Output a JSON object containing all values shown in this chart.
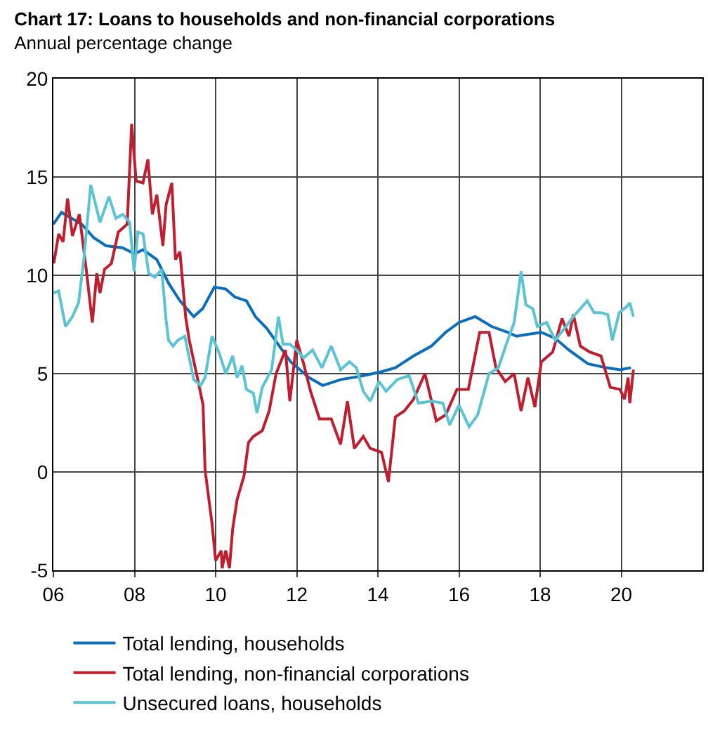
{
  "chart_data": {
    "type": "line",
    "title": "Chart 17: Loans to households and non-financial corporations",
    "subtitle": "Annual percentage change",
    "xlim": [
      2006,
      2022
    ],
    "xticks": [
      {
        "value": 2006,
        "label": "06"
      },
      {
        "value": 2008,
        "label": "08"
      },
      {
        "value": 2010,
        "label": "10"
      },
      {
        "value": 2012,
        "label": "12"
      },
      {
        "value": 2014,
        "label": "14"
      },
      {
        "value": 2016,
        "label": "16"
      },
      {
        "value": 2018,
        "label": "18"
      },
      {
        "value": 2020,
        "label": "20"
      }
    ],
    "ylim": [
      -5,
      20
    ],
    "yticks": [
      -5,
      0,
      5,
      10,
      15,
      20
    ],
    "grid": true,
    "legend": "bottom",
    "line_style": "solid",
    "marker": "none",
    "series": [
      {
        "name": "Total lending, households",
        "color": "#0a6ebd",
        "x": [
          2006.0,
          2006.2,
          2006.7,
          2007.0,
          2007.3,
          2007.7,
          2008.0,
          2008.21,
          2008.55,
          2008.84,
          2009.12,
          2009.46,
          2009.68,
          2009.97,
          2010.25,
          2010.47,
          2010.76,
          2010.98,
          2011.26,
          2011.4,
          2011.85,
          2012.3,
          2012.64,
          2013.09,
          2013.66,
          2014.09,
          2014.43,
          2014.88,
          2015.32,
          2015.67,
          2016.0,
          2016.4,
          2016.8,
          2017.2,
          2017.42,
          2017.7,
          2018.03,
          2018.37,
          2018.71,
          2019.18,
          2019.63,
          2019.97,
          2020.24
        ],
        "values": [
          12.6,
          13.2,
          12.6,
          11.9,
          11.5,
          11.4,
          11.1,
          11.3,
          10.8,
          9.6,
          8.7,
          7.9,
          8.3,
          9.4,
          9.3,
          8.9,
          8.7,
          7.9,
          7.3,
          6.9,
          5.6,
          4.8,
          4.4,
          4.7,
          4.9,
          5.1,
          5.3,
          5.9,
          6.4,
          7.1,
          7.6,
          7.9,
          7.4,
          7.1,
          6.9,
          7.0,
          7.1,
          6.8,
          6.2,
          5.5,
          5.3,
          5.2,
          5.3
        ]
      },
      {
        "name": "Total lending, non-financial corporations",
        "color": "#be1e2d",
        "x": [
          2006.01,
          2006.13,
          2006.24,
          2006.35,
          2006.47,
          2006.64,
          2006.81,
          2006.96,
          2007.07,
          2007.15,
          2007.26,
          2007.43,
          2007.6,
          2007.82,
          2007.93,
          2008.04,
          2008.21,
          2008.33,
          2008.44,
          2008.55,
          2008.7,
          2008.78,
          2008.92,
          2009.01,
          2009.12,
          2009.26,
          2009.35,
          2009.57,
          2009.69,
          2009.74,
          2009.91,
          2010.0,
          2010.14,
          2010.16,
          2010.25,
          2010.34,
          2010.42,
          2010.53,
          2010.7,
          2010.81,
          2010.93,
          2011.15,
          2011.32,
          2011.49,
          2011.72,
          2011.83,
          2012.0,
          2012.17,
          2012.34,
          2012.56,
          2012.85,
          2013.08,
          2013.25,
          2013.42,
          2013.64,
          2013.81,
          2014.09,
          2014.26,
          2014.43,
          2014.65,
          2014.88,
          2015.16,
          2015.44,
          2015.67,
          2015.95,
          2016.23,
          2016.51,
          2016.74,
          2016.91,
          2017.14,
          2017.36,
          2017.53,
          2017.7,
          2017.87,
          2018.03,
          2018.31,
          2018.54,
          2018.71,
          2018.82,
          2018.99,
          2019.22,
          2019.5,
          2019.73,
          2019.97,
          2020.08,
          2020.17,
          2020.21,
          2020.3
        ],
        "values": [
          10.6,
          12.1,
          11.7,
          13.9,
          12.0,
          13.1,
          10.3,
          7.6,
          10.1,
          9.1,
          10.3,
          10.6,
          12.2,
          12.6,
          17.7,
          14.8,
          14.7,
          15.9,
          13.1,
          14.1,
          11.5,
          13.6,
          14.7,
          10.8,
          11.2,
          7.9,
          6.7,
          4.6,
          3.4,
          0.1,
          -2.6,
          -4.5,
          -4.0,
          -4.9,
          -4.0,
          -4.9,
          -2.9,
          -1.4,
          -0.2,
          1.5,
          1.8,
          2.1,
          3.1,
          5.0,
          6.2,
          3.6,
          6.7,
          5.5,
          4.1,
          2.7,
          2.7,
          1.4,
          3.6,
          1.2,
          1.8,
          1.2,
          1.0,
          -0.5,
          2.8,
          3.1,
          3.7,
          5.0,
          2.6,
          2.9,
          4.2,
          4.2,
          7.1,
          7.1,
          5.3,
          4.6,
          5.0,
          3.1,
          4.8,
          3.3,
          5.6,
          6.1,
          7.8,
          6.9,
          8.0,
          6.4,
          6.1,
          5.9,
          4.3,
          4.2,
          3.7,
          4.8,
          3.5,
          5.2
        ]
      },
      {
        "name": "Unsecured loans, households",
        "color": "#5bc4d4",
        "x": [
          2006.0,
          2006.13,
          2006.3,
          2006.47,
          2006.62,
          2006.75,
          2006.92,
          2007.15,
          2007.37,
          2007.54,
          2007.71,
          2007.88,
          2007.99,
          2008.08,
          2008.21,
          2008.35,
          2008.5,
          2008.67,
          2008.78,
          2008.84,
          2008.95,
          2009.07,
          2009.24,
          2009.46,
          2009.63,
          2009.74,
          2009.91,
          2010.08,
          2010.25,
          2010.42,
          2010.53,
          2010.65,
          2010.76,
          2010.93,
          2011.02,
          2011.15,
          2011.38,
          2011.55,
          2011.66,
          2011.83,
          2012.0,
          2012.17,
          2012.39,
          2012.62,
          2012.85,
          2013.08,
          2013.3,
          2013.47,
          2013.64,
          2013.81,
          2014.03,
          2014.2,
          2014.48,
          2014.77,
          2015.0,
          2015.32,
          2015.6,
          2015.77,
          2016.0,
          2016.25,
          2016.46,
          2016.74,
          2016.97,
          2017.2,
          2017.36,
          2017.53,
          2017.65,
          2017.82,
          2017.93,
          2018.16,
          2018.37,
          2018.6,
          2018.82,
          2018.99,
          2019.16,
          2019.33,
          2019.5,
          2019.67,
          2019.78,
          2019.95,
          2020.13,
          2020.21,
          2020.3
        ],
        "values": [
          9.1,
          9.2,
          7.4,
          7.9,
          8.6,
          10.8,
          14.6,
          12.7,
          14.0,
          12.9,
          13.1,
          12.7,
          10.2,
          12.2,
          12.1,
          10.1,
          9.9,
          10.3,
          7.7,
          6.7,
          6.4,
          6.7,
          6.9,
          4.7,
          4.4,
          4.8,
          6.9,
          6.1,
          5.0,
          5.9,
          4.8,
          5.4,
          4.2,
          4.0,
          3.0,
          4.3,
          5.2,
          7.9,
          6.5,
          6.5,
          6.2,
          5.8,
          6.2,
          5.3,
          6.4,
          5.2,
          5.6,
          5.3,
          4.1,
          3.6,
          4.6,
          4.1,
          4.7,
          4.9,
          3.5,
          3.6,
          3.5,
          2.4,
          3.4,
          2.3,
          2.9,
          5.0,
          5.3,
          6.7,
          7.6,
          10.2,
          8.5,
          8.3,
          7.4,
          7.6,
          6.7,
          7.3,
          7.9,
          8.3,
          8.7,
          8.1,
          8.1,
          8.0,
          6.7,
          8.1,
          8.4,
          8.6,
          7.9
        ]
      }
    ]
  }
}
